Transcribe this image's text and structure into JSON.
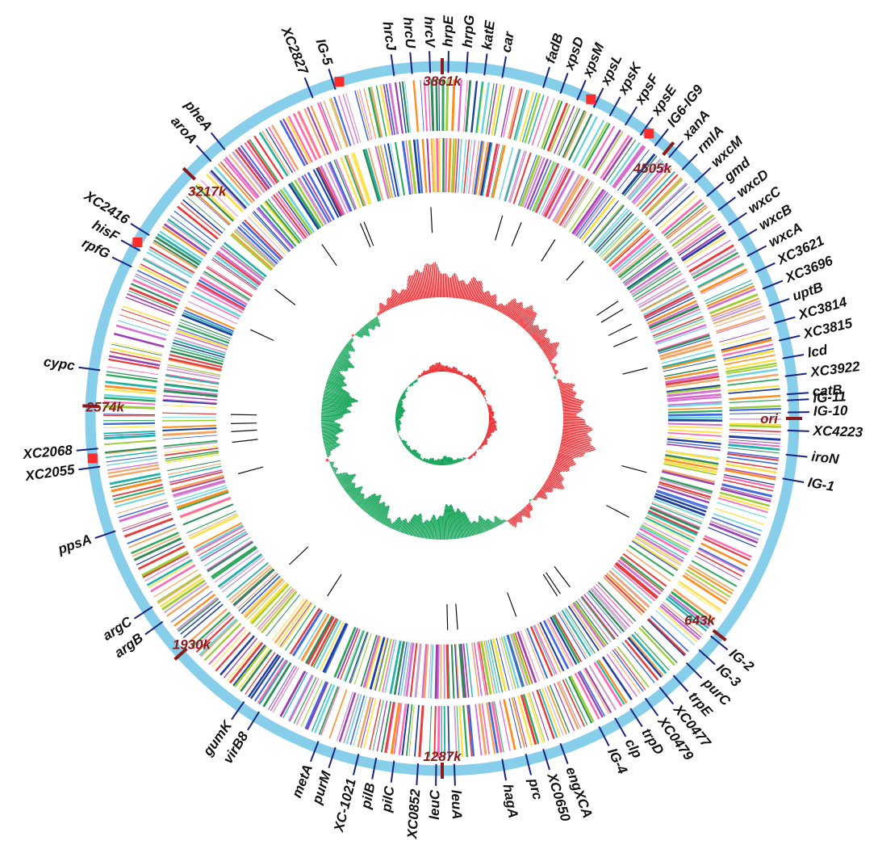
{
  "genome_map": {
    "colors": {
      "backbone": "#87ceeb",
      "position_marker": "#8b1a1a",
      "gene_tick": "#1a237e",
      "highlight": "#ff2b2b",
      "gc_skew_positive": "#e8262b",
      "gc_skew_negative": "#11a356",
      "rna_tick": "#111111",
      "cog_palette": [
        "#1f3fa0",
        "#d66bd0",
        "#ff8c1a",
        "#2e8b57",
        "#6ad3e0",
        "#ffe040",
        "#9c3fb0",
        "#e83b3b",
        "#2ba85a",
        "#f4a460",
        "#4169e1",
        "#ff69b4",
        "#20b2aa",
        "#9acd32",
        "#c8a2c8"
      ]
    },
    "position_labels": [
      "ori",
      "643k",
      "1287k",
      "1930k",
      "2574k",
      "3217k",
      "3861k",
      "4505k"
    ],
    "gene_labels": [
      {
        "text": "IG-11",
        "highlight": false
      },
      {
        "text": "iroN",
        "highlight": false
      },
      {
        "text": "IG-1",
        "highlight": false
      },
      {
        "text": "IG-2",
        "highlight": false
      },
      {
        "text": "IG-3",
        "highlight": false
      },
      {
        "text": "purC",
        "highlight": false
      },
      {
        "text": "trpE",
        "highlight": false
      },
      {
        "text": "XC0477",
        "highlight": false
      },
      {
        "text": "XC0479",
        "highlight": false
      },
      {
        "text": "trpD",
        "highlight": false
      },
      {
        "text": "clp",
        "highlight": false
      },
      {
        "text": "IG-4",
        "highlight": false
      },
      {
        "text": "engXCA",
        "highlight": false
      },
      {
        "text": "XC0650",
        "highlight": false
      },
      {
        "text": "prc",
        "highlight": false
      },
      {
        "text": "hagA",
        "highlight": false
      },
      {
        "text": "leuA",
        "highlight": false
      },
      {
        "text": "leuC",
        "highlight": false
      },
      {
        "text": "XC0852",
        "highlight": false
      },
      {
        "text": "pilC",
        "highlight": false
      },
      {
        "text": "pilB",
        "highlight": false
      },
      {
        "text": "XC-1021",
        "highlight": false
      },
      {
        "text": "purM",
        "highlight": false
      },
      {
        "text": "metA",
        "highlight": false
      },
      {
        "text": "virB8",
        "highlight": false
      },
      {
        "text": "gumK",
        "highlight": false
      },
      {
        "text": "argB",
        "highlight": false
      },
      {
        "text": "argC",
        "highlight": false
      },
      {
        "text": "ppsA",
        "highlight": false
      },
      {
        "text": "XC2055",
        "highlight": true
      },
      {
        "text": "XC2068",
        "highlight": true
      },
      {
        "text": "cypc",
        "highlight": false
      },
      {
        "text": "rpfG",
        "highlight": false
      },
      {
        "text": "hisF",
        "highlight": false
      },
      {
        "text": "XC2416",
        "highlight": true
      },
      {
        "text": "aroA",
        "highlight": false
      },
      {
        "text": "pheA",
        "highlight": false
      },
      {
        "text": "XC2827",
        "highlight": false
      },
      {
        "text": "IG-5",
        "highlight": false
      },
      {
        "text": "hrcJ",
        "highlight": false
      },
      {
        "text": "hrcU",
        "highlight": false
      },
      {
        "text": "hrcV",
        "highlight": false
      },
      {
        "text": "hrpE",
        "highlight": false
      },
      {
        "text": "hrpG",
        "highlight": false
      },
      {
        "text": "katE",
        "highlight": false
      },
      {
        "text": "car",
        "highlight": false
      },
      {
        "text": "fadB",
        "highlight": false
      },
      {
        "text": "xpsD",
        "highlight": false
      },
      {
        "text": "xpsM",
        "highlight": false
      },
      {
        "text": "xpsL",
        "highlight": false
      },
      {
        "text": "xpsK",
        "highlight": false
      },
      {
        "text": "xpsF",
        "highlight": false
      },
      {
        "text": "xpsE",
        "highlight": false
      },
      {
        "text": "IG6-IG9",
        "highlight": false
      },
      {
        "text": "xanA",
        "highlight": false
      },
      {
        "text": "rmlA",
        "highlight": false
      },
      {
        "text": "wxcM",
        "highlight": false
      },
      {
        "text": "gmd",
        "highlight": false
      },
      {
        "text": "wxcD",
        "highlight": false
      },
      {
        "text": "wxcC",
        "highlight": false
      },
      {
        "text": "wxcB",
        "highlight": false
      },
      {
        "text": "wxcA",
        "highlight": false
      },
      {
        "text": "XC3621",
        "highlight": false
      },
      {
        "text": "XC3696",
        "highlight": false
      },
      {
        "text": "uptB",
        "highlight": false
      },
      {
        "text": "XC3814",
        "highlight": false
      },
      {
        "text": "XC3815",
        "highlight": false
      },
      {
        "text": "lcd",
        "highlight": false
      },
      {
        "text": "XC3922",
        "highlight": false
      },
      {
        "text": "catB",
        "highlight": false
      },
      {
        "text": "IG-10",
        "highlight": false
      },
      {
        "text": "XC4223",
        "highlight": false
      }
    ]
  }
}
